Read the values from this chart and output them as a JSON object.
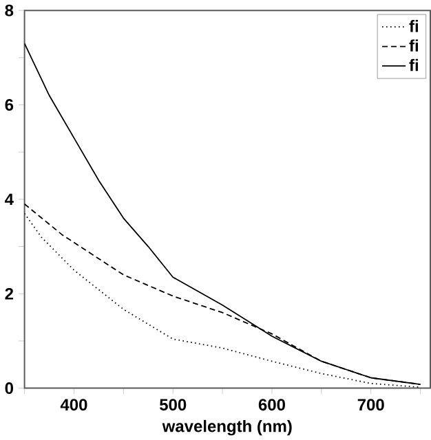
{
  "chart_data": {
    "type": "line",
    "xlabel": "wavelength (nm)",
    "xlim": [
      350,
      760
    ],
    "xticks": [
      {
        "value": 350,
        "label": null
      },
      400,
      {
        "value": 450,
        "label": null
      },
      500,
      {
        "value": 550,
        "label": null
      },
      600,
      {
        "value": 650,
        "label": null
      },
      700,
      {
        "value": 750,
        "label": null
      }
    ],
    "ylim": [
      0,
      8
    ],
    "yticks": [
      0,
      {
        "value": 1,
        "label": null
      },
      2,
      {
        "value": 3,
        "label": null
      },
      4,
      {
        "value": 5,
        "label": null
      },
      6,
      {
        "value": 7,
        "label": null
      },
      8
    ],
    "grid": false,
    "legend": "top right",
    "marker": "none",
    "series": [
      {
        "name": "fi",
        "color": "#000000",
        "line_style": "dotted",
        "x": [
          350,
          367,
          400,
          450,
          500,
          550,
          600,
          650,
          700,
          750
        ],
        "values": [
          3.7,
          3.2,
          2.5,
          1.67,
          1.04,
          0.85,
          0.57,
          0.31,
          0.1,
          0.02
        ]
      },
      {
        "name": "fi",
        "color": "#000000",
        "line_style": "dashed",
        "x": [
          350,
          388,
          450,
          500,
          550,
          600,
          630,
          650,
          700,
          750
        ],
        "values": [
          3.9,
          3.25,
          2.4,
          1.95,
          1.6,
          1.15,
          0.8,
          0.57,
          0.22,
          0.08
        ]
      },
      {
        "name": "fi",
        "color": "#000000",
        "line_style": "solid",
        "x": [
          350,
          375,
          400,
          425,
          450,
          475,
          500,
          550,
          600,
          650,
          700,
          750
        ],
        "values": [
          7.3,
          6.2,
          5.3,
          4.4,
          3.6,
          3.0,
          2.35,
          1.76,
          1.1,
          0.57,
          0.22,
          0.08
        ]
      }
    ]
  }
}
